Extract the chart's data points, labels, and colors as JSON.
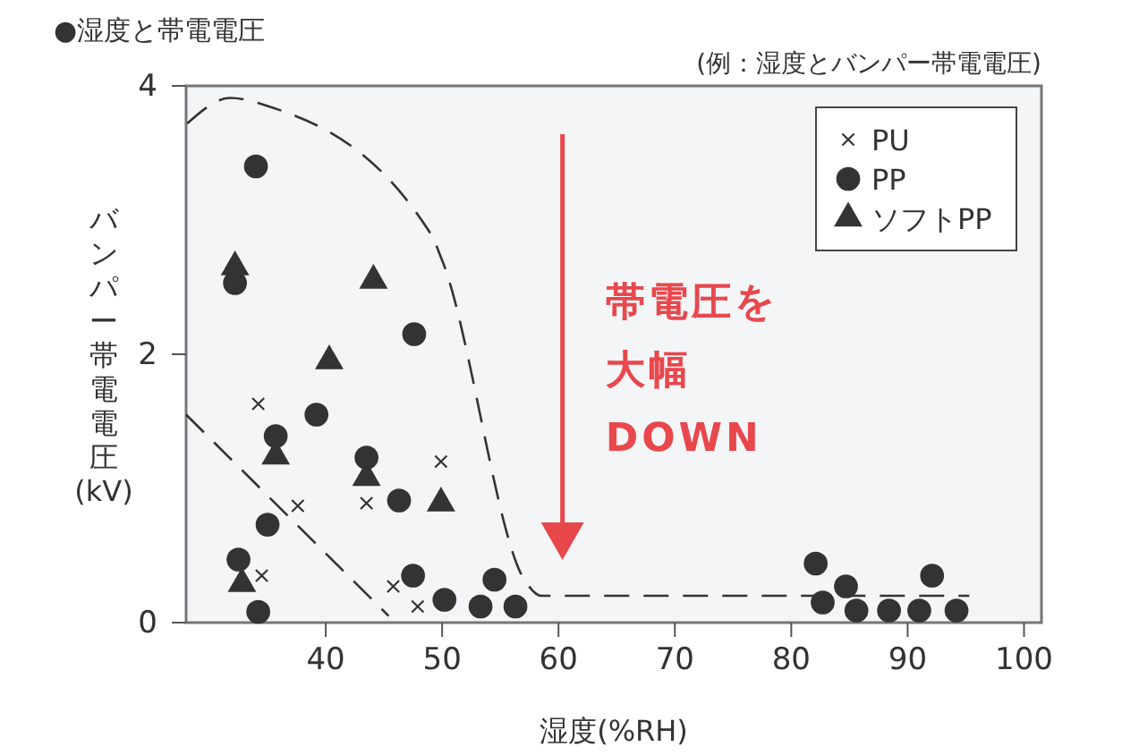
{
  "chart_data": {
    "type": "scatter",
    "title": "●湿度と帯電電圧",
    "subtitle": "(例：湿度とバンパー帯電電圧)",
    "xlabel": "湿度(%RH)",
    "ylabel": "バンパー帯電電圧(kV)",
    "xlim": [
      28,
      101.5
    ],
    "xticks": [
      40,
      50,
      60,
      70,
      80,
      90,
      100
    ],
    "ylim": [
      0,
      4
    ],
    "yticks": [
      0,
      2,
      4
    ],
    "grid": false,
    "legend": "top right",
    "annotations": [
      "帯電圧を",
      "大幅",
      "DOWN"
    ],
    "series": [
      {
        "name": "PU",
        "marker": "cross",
        "color": "#333333",
        "x": [
          34.2,
          49.9,
          37.6,
          43.5,
          34.5,
          45.8,
          47.9
        ],
        "values": [
          1.63,
          1.2,
          0.87,
          0.89,
          0.35,
          0.27,
          0.12
        ]
      },
      {
        "name": "PP",
        "marker": "circle",
        "color": "#333333",
        "x": [
          34.0,
          32.2,
          47.6,
          39.2,
          35.7,
          43.5,
          46.3,
          35.0,
          32.5,
          34.2,
          47.5,
          50.2,
          53.3,
          54.5,
          56.3,
          82.1,
          82.7,
          84.7,
          85.6,
          88.4,
          91.0,
          92.1,
          94.2
        ],
        "values": [
          3.4,
          2.53,
          2.15,
          1.55,
          1.39,
          1.23,
          0.91,
          0.73,
          0.47,
          0.08,
          0.35,
          0.17,
          0.12,
          0.32,
          0.12,
          0.44,
          0.15,
          0.27,
          0.09,
          0.09,
          0.09,
          0.35,
          0.09
        ]
      },
      {
        "name": "ソフトPP",
        "marker": "triangle",
        "color": "#333333",
        "x": [
          32.2,
          44.1,
          40.3,
          35.7,
          43.5,
          49.9,
          32.8
        ],
        "values": [
          2.65,
          2.55,
          1.95,
          1.24,
          1.08,
          0.89,
          0.29
        ]
      },
      {
        "type": "line",
        "line_style": "dashed",
        "marker": "none",
        "color": "#333333",
        "x": [
          28.1,
          31.8,
          35,
          49,
          50,
          57.2,
          58.5,
          95.3
        ],
        "values": [
          3.72,
          3.91,
          3.85,
          2.9,
          2.7,
          0.3,
          0.2,
          0.2
        ]
      },
      {
        "type": "line",
        "line_style": "dashed",
        "marker": "none",
        "color": "#333333",
        "x": [
          28,
          45.4
        ],
        "values": [
          1.55,
          0.05
        ]
      }
    ]
  }
}
